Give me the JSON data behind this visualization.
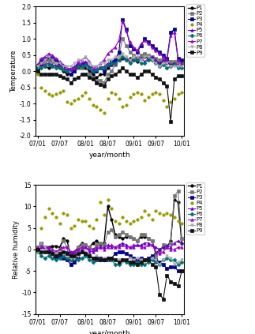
{
  "x_labels": [
    "07/01",
    "07/07",
    "08/01",
    "08/07",
    "09/01",
    "09/07",
    "10/01"
  ],
  "x_ticks": [
    0,
    6,
    13,
    19,
    26,
    32,
    39
  ],
  "n_points": 40,
  "temp": {
    "P1": [
      0.2,
      0.2,
      0.15,
      0.1,
      0.15,
      0.2,
      0.1,
      0.0,
      -0.1,
      -0.1,
      0.1,
      0.2,
      0.15,
      0.1,
      0.0,
      -0.1,
      -0.2,
      -0.1,
      -0.1,
      0.1,
      0.2,
      0.3,
      0.35,
      0.4,
      0.35,
      0.4,
      0.35,
      0.3,
      0.4,
      0.45,
      0.4,
      0.35,
      0.3,
      0.25,
      0.3,
      0.25,
      0.2,
      0.25,
      0.3,
      0.25
    ],
    "P2": [
      0.1,
      0.3,
      0.3,
      0.35,
      0.3,
      0.25,
      0.2,
      0.1,
      0.0,
      -0.1,
      0.0,
      0.1,
      0.1,
      0.2,
      -0.1,
      -0.2,
      -0.3,
      -0.3,
      -0.35,
      -0.1,
      0.0,
      0.2,
      0.5,
      1.0,
      0.8,
      0.6,
      0.5,
      0.4,
      0.5,
      0.55,
      0.5,
      0.45,
      0.4,
      0.35,
      0.4,
      0.35,
      0.3,
      0.3,
      0.3,
      0.25
    ],
    "P3": [
      0.1,
      0.35,
      0.4,
      0.45,
      0.4,
      0.35,
      0.25,
      0.15,
      0.0,
      -0.1,
      0.0,
      0.15,
      0.2,
      0.25,
      0.1,
      0.0,
      0.0,
      0.1,
      0.0,
      0.2,
      0.3,
      0.35,
      0.6,
      1.6,
      1.3,
      0.8,
      0.7,
      0.6,
      0.8,
      1.0,
      0.9,
      0.8,
      0.7,
      0.6,
      0.5,
      0.4,
      1.2,
      1.3,
      0.4,
      0.35
    ],
    "P4": [
      -0.1,
      -0.5,
      -0.6,
      -0.7,
      -0.75,
      -0.7,
      -0.65,
      -0.6,
      -0.95,
      -1.0,
      -0.9,
      -0.85,
      -0.75,
      -0.65,
      -0.85,
      -1.05,
      -1.1,
      -1.2,
      -1.3,
      -0.85,
      -0.65,
      -0.7,
      -0.85,
      -1.1,
      -1.05,
      -0.8,
      -0.7,
      -0.65,
      -0.7,
      -0.9,
      -0.8,
      -0.7,
      -0.65,
      -0.7,
      -0.9,
      -1.1,
      -0.95,
      -0.85,
      -0.7,
      -0.65
    ],
    "P5": [
      0.15,
      0.25,
      0.2,
      0.25,
      0.2,
      0.15,
      0.15,
      0.1,
      0.05,
      0.1,
      0.15,
      0.25,
      0.25,
      0.3,
      0.15,
      0.1,
      0.05,
      0.1,
      0.15,
      0.25,
      0.2,
      0.25,
      0.35,
      0.45,
      0.4,
      0.3,
      0.35,
      0.45,
      0.4,
      0.3,
      0.4,
      0.45,
      0.35,
      0.25,
      0.35,
      0.3,
      0.2,
      0.25,
      0.2,
      0.15
    ],
    "P6": [
      0.1,
      0.1,
      0.15,
      0.2,
      0.15,
      0.1,
      0.1,
      0.05,
      0.0,
      0.05,
      0.1,
      0.15,
      0.15,
      0.2,
      0.1,
      0.0,
      0.05,
      0.1,
      0.1,
      0.2,
      0.25,
      0.25,
      0.35,
      0.45,
      0.35,
      0.25,
      0.35,
      0.35,
      0.25,
      0.25,
      0.35,
      0.35,
      0.25,
      0.15,
      0.2,
      0.1,
      0.15,
      0.2,
      0.1,
      0.1
    ],
    "P7": [
      0.2,
      0.4,
      0.45,
      0.55,
      0.5,
      0.4,
      0.3,
      0.2,
      0.1,
      0.05,
      0.1,
      0.3,
      0.35,
      0.45,
      0.3,
      0.1,
      0.15,
      0.25,
      0.35,
      0.55,
      0.65,
      0.75,
      0.95,
      1.55,
      1.25,
      0.9,
      0.75,
      0.65,
      0.85,
      0.95,
      0.85,
      0.75,
      0.65,
      0.55,
      0.45,
      0.35,
      1.1,
      1.2,
      0.35,
      0.25
    ],
    "P8": [
      0.15,
      0.25,
      0.35,
      0.45,
      0.35,
      0.25,
      0.25,
      0.15,
      0.15,
      0.15,
      0.25,
      0.35,
      0.35,
      0.45,
      0.25,
      0.15,
      0.15,
      0.25,
      0.25,
      0.35,
      0.35,
      0.45,
      0.45,
      0.55,
      0.45,
      0.35,
      0.45,
      0.45,
      0.35,
      0.45,
      0.45,
      0.35,
      0.25,
      0.15,
      0.25,
      0.25,
      0.15,
      0.15,
      0.15,
      0.15
    ],
    "P9": [
      0.0,
      -0.1,
      -0.1,
      -0.1,
      -0.1,
      -0.1,
      -0.15,
      -0.2,
      -0.25,
      -0.35,
      -0.25,
      -0.2,
      -0.1,
      -0.1,
      -0.2,
      -0.25,
      -0.35,
      -0.4,
      -0.45,
      -0.25,
      -0.15,
      -0.1,
      0.0,
      0.1,
      0.0,
      -0.1,
      -0.1,
      -0.2,
      -0.1,
      0.0,
      0.0,
      -0.1,
      -0.2,
      -0.25,
      -0.35,
      -0.45,
      -1.55,
      -0.25,
      -0.15,
      -0.15
    ]
  },
  "humidity": {
    "P1": [
      0.5,
      1.0,
      0.5,
      0.5,
      0.8,
      0.8,
      0.5,
      2.5,
      2.0,
      -1.5,
      -0.5,
      0.5,
      1.5,
      1.0,
      0.5,
      1.5,
      2.0,
      1.0,
      1.5,
      10.0,
      7.0,
      3.5,
      3.0,
      2.5,
      3.0,
      3.0,
      2.5,
      2.0,
      3.0,
      3.0,
      2.5,
      2.0,
      -1.0,
      0.0,
      0.5,
      0.5,
      2.0,
      11.5,
      11.0,
      1.5
    ],
    "P2": [
      0.5,
      0.8,
      0.5,
      -0.5,
      -1.0,
      -0.5,
      0.0,
      2.0,
      0.5,
      -3.5,
      -2.0,
      0.5,
      1.0,
      1.0,
      0.5,
      0.0,
      1.0,
      1.5,
      1.0,
      4.0,
      4.5,
      3.0,
      3.5,
      4.0,
      3.5,
      3.0,
      2.5,
      2.0,
      3.5,
      3.5,
      2.5,
      2.0,
      -1.5,
      -0.5,
      1.0,
      0.5,
      1.5,
      12.5,
      13.5,
      2.5
    ],
    "P3": [
      0.0,
      1.5,
      0.5,
      -0.5,
      -1.5,
      -2.0,
      -1.5,
      -2.0,
      -2.5,
      -3.5,
      -3.0,
      -2.0,
      -0.5,
      -1.0,
      -1.5,
      -2.0,
      -2.5,
      -2.0,
      -2.5,
      -2.5,
      -2.0,
      -1.0,
      -0.5,
      -0.5,
      -1.0,
      -1.5,
      -2.0,
      -2.5,
      -2.0,
      -2.5,
      -2.0,
      -1.5,
      -2.5,
      -3.0,
      -3.5,
      -4.5,
      -4.0,
      -4.0,
      -5.0,
      -5.0
    ],
    "P4": [
      0.5,
      5.0,
      7.5,
      9.5,
      8.5,
      7.5,
      6.0,
      8.5,
      8.0,
      5.0,
      5.5,
      7.0,
      6.5,
      6.5,
      5.5,
      5.0,
      7.0,
      11.0,
      8.0,
      11.5,
      9.5,
      6.5,
      6.0,
      7.5,
      6.5,
      6.0,
      6.5,
      7.0,
      7.5,
      9.0,
      8.0,
      7.0,
      9.0,
      8.5,
      8.0,
      8.5,
      8.0,
      7.5,
      6.5,
      6.0
    ],
    "P5": [
      0.0,
      0.5,
      0.5,
      0.0,
      -0.5,
      -1.0,
      -0.5,
      -0.5,
      -0.5,
      -1.0,
      -0.5,
      0.0,
      0.0,
      0.5,
      -0.5,
      -0.5,
      0.0,
      0.5,
      0.5,
      1.0,
      0.5,
      0.5,
      1.0,
      1.5,
      1.0,
      0.5,
      0.5,
      1.0,
      1.0,
      1.5,
      1.5,
      1.0,
      0.5,
      0.0,
      0.5,
      1.0,
      0.5,
      1.5,
      2.0,
      1.5
    ],
    "P6": [
      -0.5,
      -1.5,
      -2.0,
      -1.5,
      -2.0,
      -2.5,
      -2.0,
      -1.5,
      -2.0,
      -2.5,
      -2.0,
      -2.5,
      -2.0,
      -1.5,
      -2.5,
      -3.0,
      -2.5,
      -2.5,
      -2.5,
      -2.0,
      -2.5,
      -3.5,
      -3.5,
      -2.5,
      -3.0,
      -3.5,
      -3.5,
      -3.0,
      -3.5,
      -3.5,
      -3.0,
      -2.5,
      -3.0,
      -3.5,
      -2.5,
      -2.0,
      -2.5,
      -2.5,
      -3.5,
      -3.0
    ],
    "P7": [
      0.5,
      0.5,
      0.5,
      0.5,
      0.0,
      -0.5,
      0.0,
      0.5,
      0.5,
      -0.5,
      -0.5,
      0.0,
      0.5,
      0.5,
      0.0,
      0.0,
      0.5,
      0.5,
      0.0,
      0.5,
      1.0,
      0.5,
      0.5,
      1.0,
      0.5,
      0.5,
      1.0,
      1.0,
      0.5,
      0.5,
      1.0,
      1.0,
      -0.5,
      -1.0,
      -0.5,
      0.5,
      0.0,
      0.0,
      0.5,
      0.5
    ],
    "P8": [
      -0.5,
      1.5,
      0.5,
      -0.5,
      -1.5,
      -1.0,
      -0.5,
      -1.0,
      -1.5,
      -2.0,
      -2.0,
      -1.5,
      -0.5,
      -0.5,
      -1.5,
      -2.0,
      -1.5,
      -2.5,
      -2.0,
      -2.5,
      -2.0,
      -2.5,
      -2.5,
      -3.0,
      -2.5,
      -2.0,
      -2.5,
      -2.0,
      -2.5,
      -3.0,
      -2.5,
      -2.0,
      -2.5,
      -3.5,
      -2.5,
      -1.5,
      -2.0,
      -3.5,
      -3.0,
      -2.5
    ],
    "P9": [
      0.0,
      -0.5,
      -0.5,
      -0.5,
      -1.0,
      -1.5,
      -1.0,
      -0.5,
      -1.0,
      -1.5,
      -1.5,
      -1.0,
      -0.5,
      -1.0,
      -1.5,
      -2.0,
      -2.0,
      -2.5,
      -2.5,
      -2.0,
      -2.0,
      -2.5,
      -3.0,
      -2.5,
      -2.5,
      -3.0,
      -3.0,
      -3.5,
      -3.0,
      -2.5,
      -2.5,
      -3.5,
      -4.0,
      -10.5,
      -11.5,
      -6.0,
      -7.5,
      -8.0,
      -8.5,
      -5.0
    ]
  },
  "series": [
    "P1",
    "P2",
    "P3",
    "P4",
    "P5",
    "P6",
    "P7",
    "P8",
    "P9"
  ],
  "colors": [
    "#000000",
    "#888888",
    "#000080",
    "#b8860b",
    "#4b0082",
    "#008080",
    "#800080",
    "#808080",
    "#000000"
  ],
  "markers": [
    "o",
    "s",
    "s",
    "o",
    "^",
    "D",
    "^",
    "v",
    "s"
  ],
  "linesyles": [
    "solid",
    "solid",
    "solid",
    "none",
    "solid",
    "solid",
    "solid",
    "solid",
    "solid"
  ],
  "linewidths": [
    1.0,
    0.8,
    0.8,
    0.0,
    0.8,
    0.8,
    0.8,
    0.8,
    0.8
  ],
  "temp_ylim": [
    -2.0,
    2.0
  ],
  "humidity_ylim": [
    -15,
    15
  ],
  "temp_yticks": [
    -2.0,
    -1.5,
    -1.0,
    -0.5,
    0.0,
    0.5,
    1.0,
    1.5,
    2.0
  ],
  "humidity_yticks": [
    -15,
    -10,
    -5,
    0,
    5,
    10,
    15
  ],
  "xlabel": "year/month",
  "temp_ylabel": "Temperature",
  "humidity_ylabel": "Relative humidity"
}
